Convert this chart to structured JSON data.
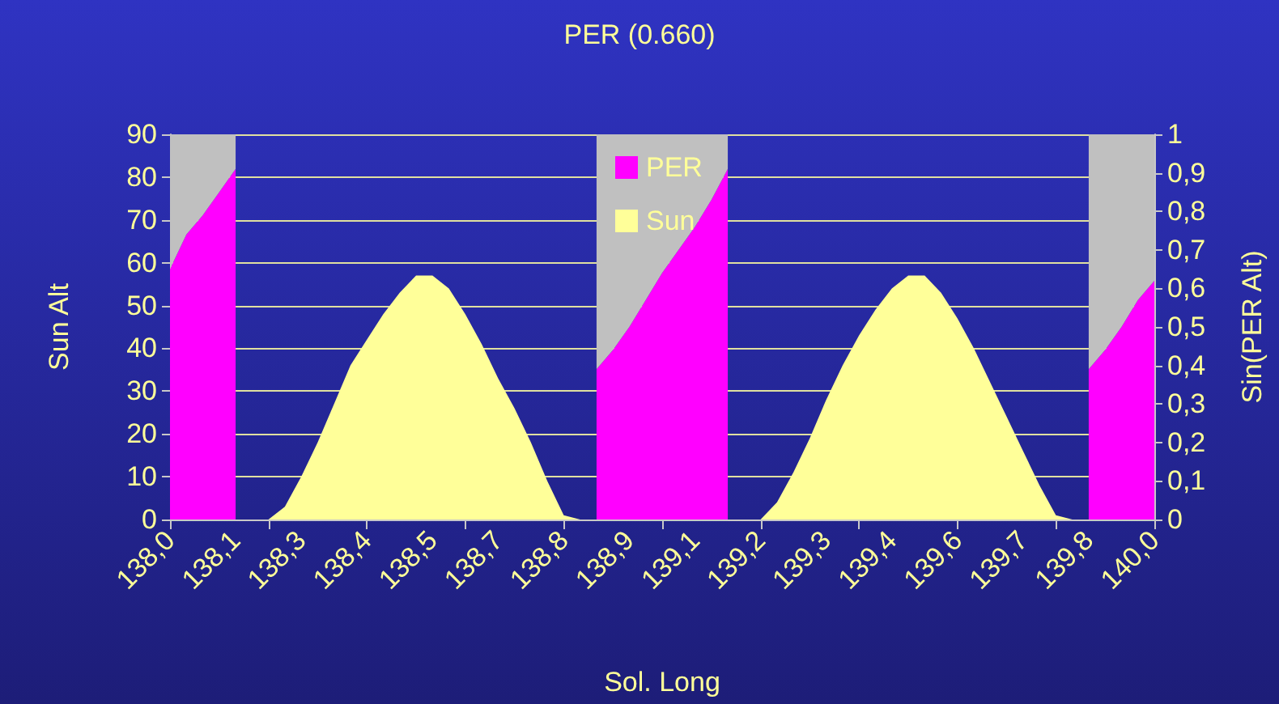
{
  "chart_data": {
    "type": "area",
    "title": "PER (0.660)",
    "xlabel": "Sol. Long",
    "ylabel": "Sun Alt",
    "y2label": "Sin(PER Alt)",
    "categories": [
      "138,0",
      null,
      null,
      null,
      "138,1",
      null,
      null,
      null,
      "138,3",
      null,
      null,
      null,
      "138,4",
      null,
      null,
      null,
      "138,5",
      null,
      null,
      null,
      "138,7",
      null,
      null,
      null,
      "138,8",
      null,
      null,
      null,
      "138,9",
      null,
      null,
      null,
      "139,1",
      null,
      null,
      null,
      "139,2",
      null,
      null,
      null,
      "139,3",
      null,
      null,
      null,
      "139,4",
      null,
      null,
      null,
      "139,6",
      null,
      null,
      null,
      "139,7",
      null,
      null,
      null,
      "139,8",
      null,
      null,
      null,
      "140,0"
    ],
    "series": [
      {
        "name": "PER",
        "color": "#ff00ff",
        "axis": "y2",
        "values": [
          0.65,
          0.74,
          0.79,
          0.85,
          0.91,
          null,
          null,
          null,
          null,
          null,
          null,
          null,
          null,
          null,
          null,
          null,
          null,
          null,
          null,
          null,
          null,
          null,
          null,
          null,
          null,
          null,
          0.39,
          0.44,
          0.5,
          0.57,
          0.64,
          0.7,
          0.76,
          0.83,
          0.91,
          null,
          null,
          null,
          null,
          null,
          null,
          null,
          null,
          null,
          null,
          null,
          null,
          null,
          null,
          null,
          null,
          null,
          null,
          null,
          null,
          null,
          0.39,
          0.44,
          0.5,
          0.57,
          0.62
        ]
      },
      {
        "color": "#c0c0c0",
        "axis": "y2",
        "values": [
          0.35,
          0.26,
          0.21,
          0.15,
          0.09,
          null,
          null,
          null,
          null,
          null,
          null,
          null,
          null,
          null,
          null,
          null,
          null,
          null,
          null,
          null,
          null,
          null,
          null,
          null,
          null,
          null,
          0.61,
          0.56,
          0.5,
          0.43,
          0.36,
          0.3,
          0.24,
          0.17,
          0.09,
          null,
          null,
          null,
          null,
          null,
          null,
          null,
          null,
          null,
          null,
          null,
          null,
          null,
          null,
          null,
          null,
          null,
          null,
          null,
          null,
          null,
          0.61,
          0.56,
          0.5,
          0.43,
          0.38
        ]
      },
      {
        "name": "Sun",
        "color": "#ffff99",
        "values": [
          null,
          null,
          null,
          null,
          null,
          0,
          0,
          3,
          10,
          18,
          27,
          36,
          42,
          48,
          53,
          57,
          57,
          54,
          48,
          41,
          33,
          26,
          18,
          9,
          1,
          0,
          null,
          null,
          null,
          null,
          null,
          null,
          null,
          null,
          null,
          0,
          0,
          4,
          11,
          19,
          28,
          36,
          43,
          49,
          54,
          57,
          57,
          53,
          47,
          40,
          32,
          24,
          16,
          8,
          1,
          0,
          null,
          null,
          null,
          null,
          null
        ]
      }
    ],
    "stacked": true,
    "ylim": [
      0,
      90
    ],
    "yticks": [
      0,
      10,
      20,
      30,
      40,
      50,
      60,
      70,
      80,
      90
    ],
    "y2lim": [
      0,
      1
    ],
    "y2ticks": [
      0,
      {
        "value": 0.1,
        "label": "0,1"
      },
      {
        "value": 0.2,
        "label": "0,2"
      },
      {
        "value": 0.3,
        "label": "0,3"
      },
      {
        "value": 0.4,
        "label": "0,4"
      },
      {
        "value": 0.5,
        "label": "0,5"
      },
      {
        "value": 0.6,
        "label": "0,6"
      },
      {
        "value": 0.7,
        "label": "0,7"
      },
      {
        "value": 0.8,
        "label": "0,8"
      },
      {
        "value": 0.9,
        "label": "0,9"
      },
      1
    ],
    "grid": "y",
    "legend": "top"
  }
}
